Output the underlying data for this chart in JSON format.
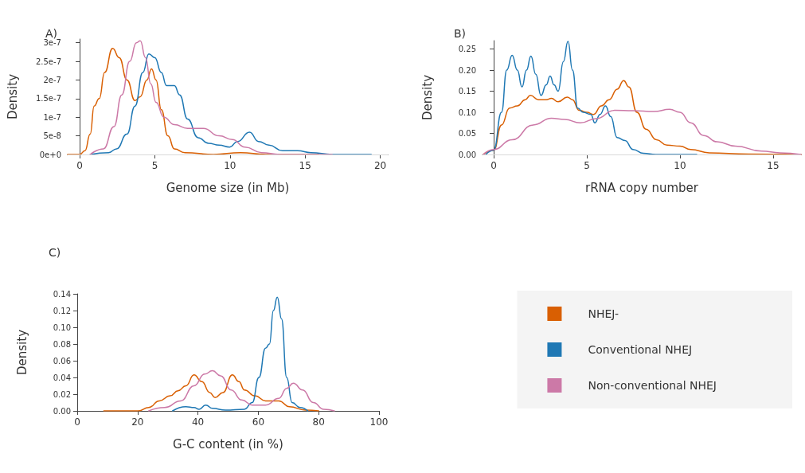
{
  "chart_data": [
    {
      "type": "line",
      "title": "A)",
      "xlabel": "Genome size (in Mb)",
      "ylabel": "Density",
      "xlim": [
        -0.8,
        20.5
      ],
      "xticks": [
        0,
        5,
        10,
        15,
        20
      ],
      "ylim": [
        0,
        3.1e-07
      ],
      "yticks": [
        {
          "value": 0,
          "label": "0e+0"
        },
        {
          "value": 5e-08,
          "label": "5e-8"
        },
        {
          "value": 1e-07,
          "label": "1e-7"
        },
        {
          "value": 1.5e-07,
          "label": "1.5e-7"
        },
        {
          "value": 2e-07,
          "label": "2e-7"
        },
        {
          "value": 2.5e-07,
          "label": "2.5e-7"
        },
        {
          "value": 3e-07,
          "label": "3e-7"
        }
      ],
      "grid": false,
      "marker": "none",
      "line_style": "solid",
      "ref_lines": [
        {
          "axis": "y",
          "value": 0,
          "color": "#d9d9d9"
        }
      ],
      "series": [
        {
          "color": "#d95f02",
          "x": [
            -0.8,
            0,
            0.35,
            0.7,
            0.96,
            1.3,
            1.66,
            2.19,
            2.63,
            3.15,
            3.68,
            4.03,
            4.47,
            4.78,
            5.08,
            5.43,
            5.87,
            6.3,
            7.0,
            8.9,
            10.7,
            12.4,
            15.9
          ],
          "values": [
            0,
            0,
            1e-08,
            5.5e-08,
            1.3e-07,
            1.5e-07,
            2.2e-07,
            2.85e-07,
            2.6e-07,
            2e-07,
            1.45e-07,
            1.55e-07,
            2e-07,
            2.3e-07,
            2e-07,
            1.2e-07,
            5e-08,
            1.5e-08,
            5e-09,
            0,
            5e-09,
            0,
            0
          ]
        },
        {
          "color": "#1f78b4",
          "x": [
            0.7,
            1.93,
            2.45,
            3.15,
            3.68,
            4.2,
            4.6,
            5.0,
            5.43,
            5.78,
            6.3,
            6.65,
            7.18,
            7.88,
            8.58,
            9.28,
            9.98,
            10.5,
            11.3,
            11.9,
            12.6,
            13.5,
            14.5,
            15.4,
            16.8,
            19.3,
            19.4
          ],
          "values": [
            0,
            5e-09,
            1.5e-08,
            5.5e-08,
            1.3e-07,
            2.2e-07,
            2.7e-07,
            2.6e-07,
            2.2e-07,
            1.85e-07,
            1.85e-07,
            1.6e-07,
            9.5e-08,
            4.5e-08,
            3e-08,
            2.5e-08,
            2e-08,
            3.5e-08,
            6e-08,
            3.5e-08,
            2.5e-08,
            1e-08,
            1e-08,
            5e-09,
            0,
            0,
            0
          ]
        },
        {
          "color": "#cc79a7",
          "x": [
            0.7,
            1.58,
            2.28,
            2.8,
            3.33,
            3.77,
            4.03,
            4.38,
            4.73,
            5.08,
            5.6,
            6.3,
            7.18,
            8.23,
            9.28,
            10.16,
            11.0,
            12.1,
            13.3,
            15.1,
            16.8
          ],
          "values": [
            0,
            1.5e-08,
            7.5e-08,
            1.6e-07,
            2.5e-07,
            3e-07,
            3.05e-07,
            2.6e-07,
            1.9e-07,
            1.4e-07,
            1e-07,
            8e-08,
            7e-08,
            7e-08,
            5e-08,
            4e-08,
            2e-08,
            5e-09,
            0,
            0,
            0
          ]
        }
      ]
    },
    {
      "type": "line",
      "title": "B)",
      "xlabel": "rRNA copy number",
      "ylabel": "Density",
      "xlim": [
        -0.6,
        16.5
      ],
      "xticks": [
        0,
        5,
        10,
        15
      ],
      "ylim": [
        0,
        0.27
      ],
      "yticks": [
        {
          "value": 0,
          "label": "0.00"
        },
        {
          "value": 0.05,
          "label": "0.05"
        },
        {
          "value": 0.1,
          "label": "0.10"
        },
        {
          "value": 0.15,
          "label": "0.15"
        },
        {
          "value": 0.2,
          "label": "0.20"
        },
        {
          "value": 0.25,
          "label": "0.25"
        }
      ],
      "grid": false,
      "marker": "none",
      "line_style": "solid",
      "ref_lines": [
        {
          "axis": "y",
          "value": 0,
          "color": "#d9d9d9"
        }
      ],
      "series": [
        {
          "color": "#d95f02",
          "x": [
            -0.56,
            0,
            0.42,
            0.85,
            1.27,
            1.69,
            1.97,
            2.4,
            2.82,
            3.1,
            3.46,
            3.95,
            4.23,
            4.58,
            5.0,
            5.36,
            5.78,
            6.2,
            6.63,
            6.98,
            7.26,
            7.69,
            8.18,
            8.74,
            9.31,
            10.0,
            10.58,
            11.57,
            13.68,
            16.5
          ],
          "values": [
            0,
            0.01,
            0.07,
            0.11,
            0.115,
            0.13,
            0.14,
            0.13,
            0.13,
            0.133,
            0.125,
            0.136,
            0.13,
            0.105,
            0.1,
            0.095,
            0.115,
            0.13,
            0.155,
            0.175,
            0.16,
            0.1,
            0.06,
            0.035,
            0.022,
            0.02,
            0.012,
            0.004,
            0.001,
            0
          ]
        },
        {
          "color": "#1f78b4",
          "x": [
            -0.42,
            0,
            0.42,
            0.7,
            0.99,
            1.27,
            1.52,
            1.76,
            2.0,
            2.26,
            2.54,
            2.82,
            3.03,
            3.24,
            3.46,
            3.74,
            3.99,
            4.23,
            4.51,
            4.8,
            5.22,
            5.43,
            5.71,
            6.0,
            6.28,
            6.63,
            7.05,
            7.48,
            8.04,
            8.7,
            10.9
          ],
          "values": [
            0,
            0.01,
            0.1,
            0.2,
            0.235,
            0.2,
            0.16,
            0.2,
            0.233,
            0.19,
            0.14,
            0.165,
            0.186,
            0.165,
            0.15,
            0.22,
            0.268,
            0.2,
            0.11,
            0.1,
            0.095,
            0.075,
            0.095,
            0.115,
            0.09,
            0.04,
            0.033,
            0.012,
            0.003,
            0,
            0
          ]
        },
        {
          "color": "#cc79a7",
          "x": [
            -0.56,
            0,
            0.99,
            2.12,
            3.1,
            3.81,
            4.65,
            5.5,
            6.49,
            7.48,
            8.6,
            9.45,
            10.0,
            10.58,
            11.28,
            11.99,
            12.98,
            14.39,
            15.37,
            16.5
          ],
          "values": [
            0,
            0.012,
            0.035,
            0.07,
            0.086,
            0.083,
            0.075,
            0.085,
            0.105,
            0.104,
            0.102,
            0.107,
            0.1,
            0.075,
            0.045,
            0.03,
            0.02,
            0.008,
            0.004,
            0
          ]
        }
      ]
    },
    {
      "type": "line",
      "title": "C)",
      "xlabel": "G-C content (in %)",
      "ylabel": "Density",
      "xlim": [
        0,
        100
      ],
      "xticks": [
        0,
        20,
        40,
        60,
        80,
        100
      ],
      "ylim": [
        0,
        0.14
      ],
      "yticks": [
        {
          "value": 0,
          "label": "0.00"
        },
        {
          "value": 0.02,
          "label": "0.02"
        },
        {
          "value": 0.04,
          "label": "0.04"
        },
        {
          "value": 0.06,
          "label": "0.06"
        },
        {
          "value": 0.08,
          "label": "0.08"
        },
        {
          "value": 0.1,
          "label": "0.10"
        },
        {
          "value": 0.12,
          "label": "0.12"
        },
        {
          "value": 0.14,
          "label": "0.14"
        }
      ],
      "grid": false,
      "marker": "none",
      "line_style": "solid",
      "legend": "right",
      "series": [
        {
          "name": "NHEJ-",
          "color": "#d95f02",
          "x": [
            8.8,
            20.2,
            23.7,
            27.2,
            30.8,
            33.4,
            36.0,
            38.7,
            41.3,
            43.9,
            45.7,
            48.3,
            51.4,
            53.6,
            55.4,
            58.9,
            62.4,
            66.8,
            70.3,
            75.6,
            80.0
          ],
          "values": [
            0,
            0,
            0.004,
            0.012,
            0.018,
            0.024,
            0.03,
            0.043,
            0.035,
            0.022,
            0.016,
            0.022,
            0.043,
            0.035,
            0.025,
            0.018,
            0.012,
            0.012,
            0.005,
            0.001,
            0
          ]
        },
        {
          "name": "Conventional NHEJ",
          "color": "#1f78b4",
          "x": [
            31.6,
            36.0,
            38.7,
            40.4,
            42.6,
            44.8,
            49.2,
            55.4,
            58.0,
            60.2,
            62.4,
            63.7,
            65.0,
            66.3,
            67.7,
            69.4,
            71.2,
            73.8,
            76.4
          ],
          "values": [
            0,
            0.005,
            0.004,
            0.002,
            0.007,
            0.003,
            0.001,
            0.002,
            0.01,
            0.04,
            0.075,
            0.08,
            0.12,
            0.136,
            0.11,
            0.04,
            0.01,
            0.004,
            0
          ]
        },
        {
          "name": "Non-conventional NHEJ",
          "color": "#cc79a7",
          "x": [
            23.7,
            29.0,
            34.3,
            38.7,
            42.2,
            44.8,
            47.5,
            51.0,
            54.5,
            58.0,
            62.4,
            66.8,
            69.4,
            71.6,
            74.7,
            78.2,
            81.7,
            85.2
          ],
          "values": [
            0,
            0.004,
            0.012,
            0.03,
            0.044,
            0.048,
            0.042,
            0.025,
            0.013,
            0.007,
            0.007,
            0.015,
            0.027,
            0.033,
            0.025,
            0.01,
            0.002,
            0
          ]
        }
      ]
    }
  ]
}
